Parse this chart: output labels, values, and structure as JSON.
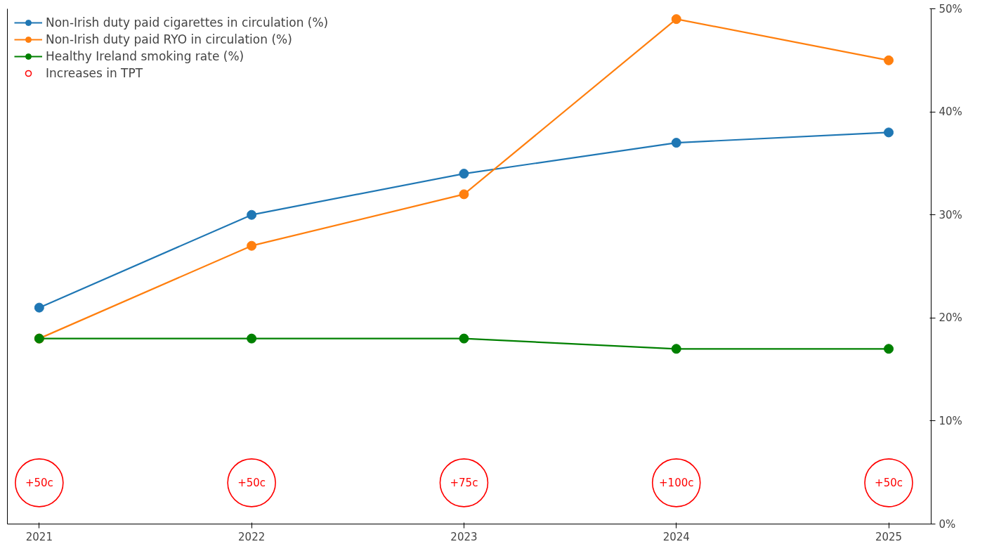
{
  "chart_data": {
    "type": "line",
    "categories": [
      "2021",
      "2022",
      "2023",
      "2024",
      "2025"
    ],
    "ylim": [
      0,
      50
    ],
    "yticks": [
      {
        "value": 0,
        "label": "0%"
      },
      {
        "value": 10,
        "label": "10%"
      },
      {
        "value": 20,
        "label": "20%"
      },
      {
        "value": 30,
        "label": "30%"
      },
      {
        "value": 40,
        "label": "40%"
      },
      {
        "value": 50,
        "label": "50%"
      }
    ],
    "grid": false,
    "legend": "top left",
    "marker": "circle",
    "line_style": "solid",
    "series": [
      {
        "name": "Non-Irish duty paid cigarettes in circulation (%)",
        "color": "#1f77b4",
        "values": [
          21,
          30,
          34,
          37,
          38
        ]
      },
      {
        "name": "Non-Irish duty paid RYO in circulation (%)",
        "color": "#ff7f0e",
        "values": [
          18,
          27,
          32,
          49,
          45
        ]
      },
      {
        "name": "Healthy Ireland smoking rate (%)",
        "color": "#008000",
        "values": [
          18,
          18,
          18,
          17,
          17
        ]
      },
      {
        "name": "Increases in TPT",
        "type": "scatter",
        "color": "#ff0000",
        "values": [
          4,
          4,
          4,
          4,
          4
        ]
      }
    ],
    "annotations": [
      {
        "text": "+50c",
        "x": "2021",
        "y": 4
      },
      {
        "text": "+50c",
        "x": "2022",
        "y": 4
      },
      {
        "text": "+75c",
        "x": "2023",
        "y": 4
      },
      {
        "text": "+100c",
        "x": "2024",
        "y": 4
      },
      {
        "text": "+50c",
        "x": "2025",
        "y": 4
      }
    ]
  }
}
